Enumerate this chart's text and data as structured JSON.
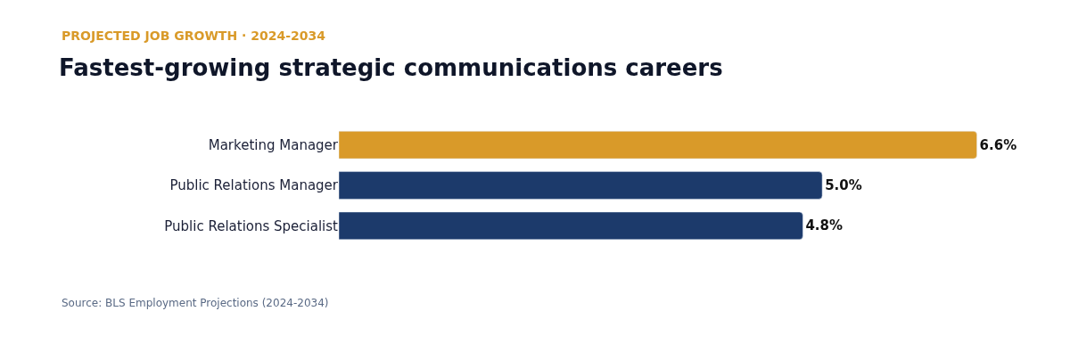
{
  "chart_data": {
    "type": "bar",
    "orientation": "horizontal",
    "subtitle": "PROJECTED JOB GROWTH · 2024-2034",
    "title": "Fastest-growing strategic communications careers",
    "categories": [
      "Marketing Manager",
      "Public Relations Manager",
      "Public Relations Specialist"
    ],
    "values": [
      6.6,
      5.0,
      4.8
    ],
    "colors": [
      "#d99a29",
      "#1c3a6b",
      "#1c3a6b"
    ],
    "value_labels": [
      "6.6%",
      "5.0%",
      "4.8%"
    ],
    "annotations": [
      "Source: BLS Employment Projections (2024-2034)"
    ]
  }
}
